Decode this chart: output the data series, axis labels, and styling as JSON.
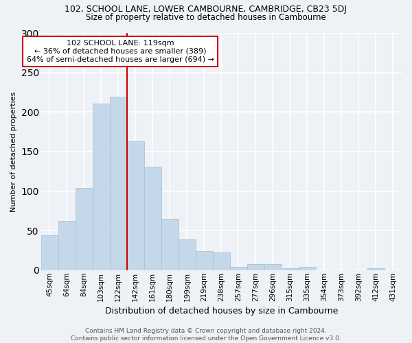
{
  "title1": "102, SCHOOL LANE, LOWER CAMBOURNE, CAMBRIDGE, CB23 5DJ",
  "title2": "Size of property relative to detached houses in Cambourne",
  "xlabel": "Distribution of detached houses by size in Cambourne",
  "ylabel": "Number of detached properties",
  "categories": [
    "45sqm",
    "64sqm",
    "84sqm",
    "103sqm",
    "122sqm",
    "142sqm",
    "161sqm",
    "180sqm",
    "199sqm",
    "219sqm",
    "238sqm",
    "257sqm",
    "277sqm",
    "296sqm",
    "315sqm",
    "335sqm",
    "354sqm",
    "373sqm",
    "392sqm",
    "412sqm",
    "431sqm"
  ],
  "values": [
    44,
    62,
    104,
    211,
    219,
    163,
    131,
    65,
    39,
    24,
    22,
    4,
    8,
    8,
    2,
    4,
    0,
    0,
    0,
    2,
    0
  ],
  "bar_color": "#c5d8ea",
  "bar_edgecolor": "#a8c4d8",
  "vline_x": 4.5,
  "vline_color": "#cc0000",
  "annotation_text": "102 SCHOOL LANE: 119sqm\n← 36% of detached houses are smaller (389)\n64% of semi-detached houses are larger (694) →",
  "annotation_box_facecolor": "#ffffff",
  "annotation_box_edgecolor": "#cc0000",
  "ylim": [
    0,
    300
  ],
  "yticks": [
    0,
    50,
    100,
    150,
    200,
    250,
    300
  ],
  "footer": "Contains HM Land Registry data © Crown copyright and database right 2024.\nContains public sector information licensed under the Open Government Licence v3.0.",
  "bg_color": "#eef2f7",
  "plot_bg_color": "#eef2f7",
  "grid_color": "#ffffff",
  "title1_fontsize": 9,
  "title2_fontsize": 8.5,
  "ylabel_fontsize": 8,
  "xlabel_fontsize": 9,
  "ann_fontsize": 8,
  "footer_fontsize": 6.5
}
